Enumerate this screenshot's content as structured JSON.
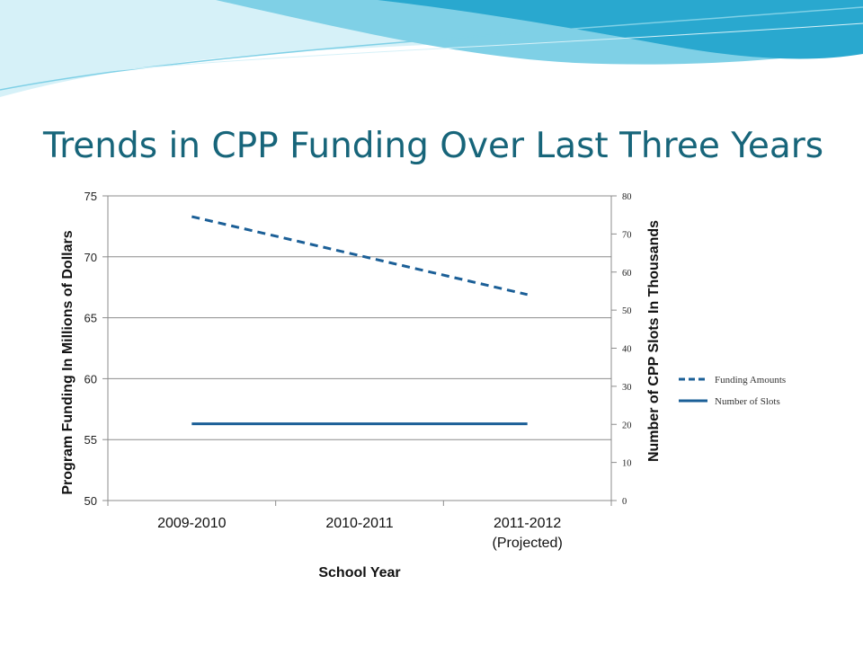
{
  "slide": {
    "title": "Trends in CPP Funding Over Last Three Years"
  },
  "colors": {
    "title": "#17657a",
    "series_line": "#1b5f97",
    "gridline": "#8c8c8c",
    "swoosh_light": "#d6f1f8",
    "swoosh_mid": "#7fd0e6",
    "swoosh_dark": "#29a8cf"
  },
  "chart_data": {
    "type": "line",
    "categories": [
      "2009-2010",
      "2010-2011",
      "2011-2012\n(Projected)"
    ],
    "xlabel": "School Year",
    "ylabel": "Program Funding In Millions of Dollars",
    "y2label": "Number  of CPP Slots In Thousands",
    "ylim": [
      50,
      75
    ],
    "y_ticks": [
      50,
      55,
      60,
      65,
      70,
      75
    ],
    "y2lim": [
      0,
      80
    ],
    "y2_ticks": [
      0,
      10,
      20,
      30,
      40,
      50,
      60,
      70,
      80
    ],
    "grid": true,
    "legend_position": "right",
    "series": [
      {
        "name": "Funding Amounts",
        "axis": "left",
        "style": "dashed",
        "x": [
          0,
          2
        ],
        "values": [
          73.3,
          66.9
        ]
      },
      {
        "name": "Number of Slots",
        "axis": "left",
        "style": "solid",
        "x": [
          0,
          2
        ],
        "values": [
          56.3,
          56.3
        ]
      }
    ]
  }
}
